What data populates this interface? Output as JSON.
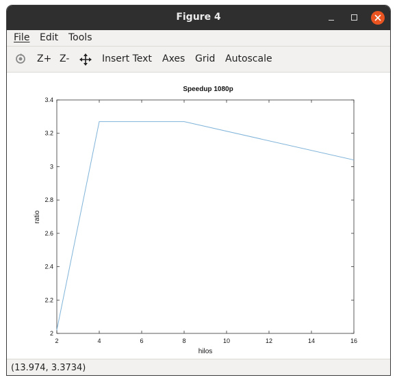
{
  "window": {
    "title": "Figure 4"
  },
  "menubar": {
    "items": [
      "File",
      "Edit",
      "Tools"
    ]
  },
  "toolbar": {
    "zoom_in": "Z+",
    "zoom_out": "Z-",
    "insert_text": "Insert Text",
    "axes": "Axes",
    "grid": "Grid",
    "autoscale": "Autoscale"
  },
  "status": {
    "coordinates": "(13.974, 3.3734)"
  },
  "colors": {
    "line": "#7fb3d9",
    "titlebar": "#2f2f2f",
    "close_button": "#e95420"
  },
  "chart_data": {
    "type": "line",
    "title": "Speedup 1080p",
    "xlabel": "hilos",
    "ylabel": "ratio",
    "xlim": [
      2,
      16
    ],
    "ylim": [
      2,
      3.4
    ],
    "xticks": [
      2,
      4,
      6,
      8,
      10,
      12,
      14,
      16
    ],
    "yticks": [
      2,
      2.2,
      2.4,
      2.6,
      2.8,
      3,
      3.2,
      3.4
    ],
    "grid": false,
    "series": [
      {
        "x": [
          2,
          4,
          8,
          16
        ],
        "y": [
          2.02,
          3.27,
          3.27,
          3.04
        ]
      }
    ]
  }
}
